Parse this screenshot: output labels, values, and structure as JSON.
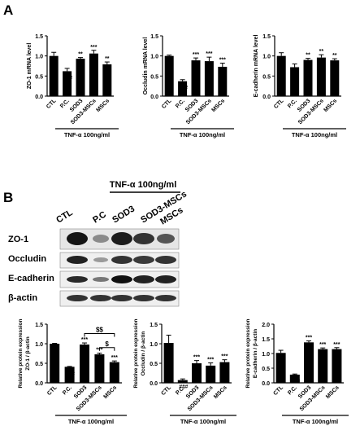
{
  "figure": {
    "panel_a_label": "A",
    "panel_b_label": "B",
    "treatment_label": "TNF-α 100ng/ml",
    "blot_header": "TNF-α 100ng/ml"
  },
  "blot": {
    "lanes": [
      "CTL",
      "P.C",
      "SOD3",
      "SOD3-MSCs",
      "MSCs"
    ],
    "rows": [
      "ZO-1",
      "Occludin",
      "E-cadherin",
      "β-actin"
    ]
  },
  "chart_data": [
    {
      "type": "bar",
      "panel": "A",
      "ylabel": "ZO-1 mRNA level",
      "categories": [
        "CTL",
        "P.C.",
        "SOD3",
        "SOD3-MSCs",
        "MSCs"
      ],
      "values": [
        1.0,
        0.62,
        0.93,
        1.06,
        0.79
      ],
      "errors": [
        0.09,
        0.07,
        0.03,
        0.08,
        0.06
      ],
      "significance": [
        "",
        "###",
        "**",
        "***",
        "**"
      ],
      "ylim": [
        0,
        1.5
      ],
      "yticks": [
        "0.0",
        "0.5",
        "1.0",
        "1.5"
      ],
      "xlabel": "TNF-α 100ng/ml"
    },
    {
      "type": "bar",
      "panel": "A",
      "ylabel": "Occludin mRNA level",
      "categories": [
        "CTL",
        "P.C.",
        "SOD3",
        "SOD3-MSCs",
        "MSCs"
      ],
      "values": [
        1.0,
        0.37,
        0.89,
        0.87,
        0.73
      ],
      "errors": [
        0.02,
        0.04,
        0.06,
        0.1,
        0.09
      ],
      "significance": [
        "",
        "###",
        "***",
        "***",
        "***"
      ],
      "ylim": [
        0,
        1.5
      ],
      "yticks": [
        "0.0",
        "0.5",
        "1.0",
        "1.5"
      ],
      "xlabel": "TNF-α 100ng/ml"
    },
    {
      "type": "bar",
      "panel": "A",
      "ylabel": "E-cadherin mRNA level",
      "categories": [
        "CTL",
        "P.C.",
        "SOD3",
        "SOD3-MSCs",
        "MSCs"
      ],
      "values": [
        1.0,
        0.72,
        0.9,
        0.96,
        0.89
      ],
      "errors": [
        0.08,
        0.08,
        0.04,
        0.07,
        0.04
      ],
      "significance": [
        "",
        "##",
        "**",
        "**",
        "**"
      ],
      "ylim": [
        0,
        1.5
      ],
      "yticks": [
        "0.0",
        "0.5",
        "1.0",
        "1.5"
      ],
      "xlabel": "TNF-α 100ng/ml"
    },
    {
      "type": "bar",
      "panel": "B",
      "ylabel": "Relative protein expression ZO-1 / β-actin",
      "categories": [
        "CTL",
        "P.C.",
        "SOD3",
        "SOD3-MSCs",
        "MSCs"
      ],
      "values": [
        1.0,
        0.41,
        0.98,
        0.73,
        0.53
      ],
      "errors": [
        0.01,
        0.01,
        0.04,
        0.03,
        0.03
      ],
      "significance": [
        "",
        "###",
        "***",
        "***",
        "***"
      ],
      "brackets": [
        {
          "from": 2,
          "to": 4,
          "label": "$$",
          "y": 1.26
        },
        {
          "from": 3,
          "to": 4,
          "label": "$",
          "y": 0.9
        }
      ],
      "ylim": [
        0,
        1.5
      ],
      "yticks": [
        "0.0",
        "0.5",
        "1.0",
        "1.5"
      ],
      "xlabel": "TNF-α 100ng/ml"
    },
    {
      "type": "bar",
      "panel": "B",
      "ylabel": "Relative protein expression Occludin / β-actin",
      "categories": [
        "CTL",
        "P.C.",
        "SOD3",
        "SOD3-MSCs",
        "MSCs"
      ],
      "values": [
        1.02,
        0.07,
        0.5,
        0.44,
        0.53
      ],
      "errors": [
        0.2,
        0.03,
        0.07,
        0.07,
        0.06
      ],
      "significance": [
        "",
        "###",
        "***",
        "***",
        "***"
      ],
      "ylim": [
        0,
        1.5
      ],
      "yticks": [
        "0.0",
        "0.5",
        "1.0",
        "1.5"
      ],
      "xlabel": "TNF-α 100ng/ml"
    },
    {
      "type": "bar",
      "panel": "B",
      "ylabel": "Relative protein expression E-cadherin / β-actin",
      "categories": [
        "CTL",
        "P.C.",
        "SOD3",
        "SOD3-MSCs",
        "MSCs"
      ],
      "values": [
        1.02,
        0.28,
        1.38,
        1.15,
        1.15
      ],
      "errors": [
        0.09,
        0.02,
        0.05,
        0.04,
        0.05
      ],
      "significance": [
        "",
        "###",
        "***",
        "***",
        "***"
      ],
      "ylim": [
        0,
        2.0
      ],
      "yticks": [
        "0.0",
        "0.5",
        "1.0",
        "1.5",
        "2.0"
      ],
      "xlabel": "TNF-α 100ng/ml"
    }
  ]
}
